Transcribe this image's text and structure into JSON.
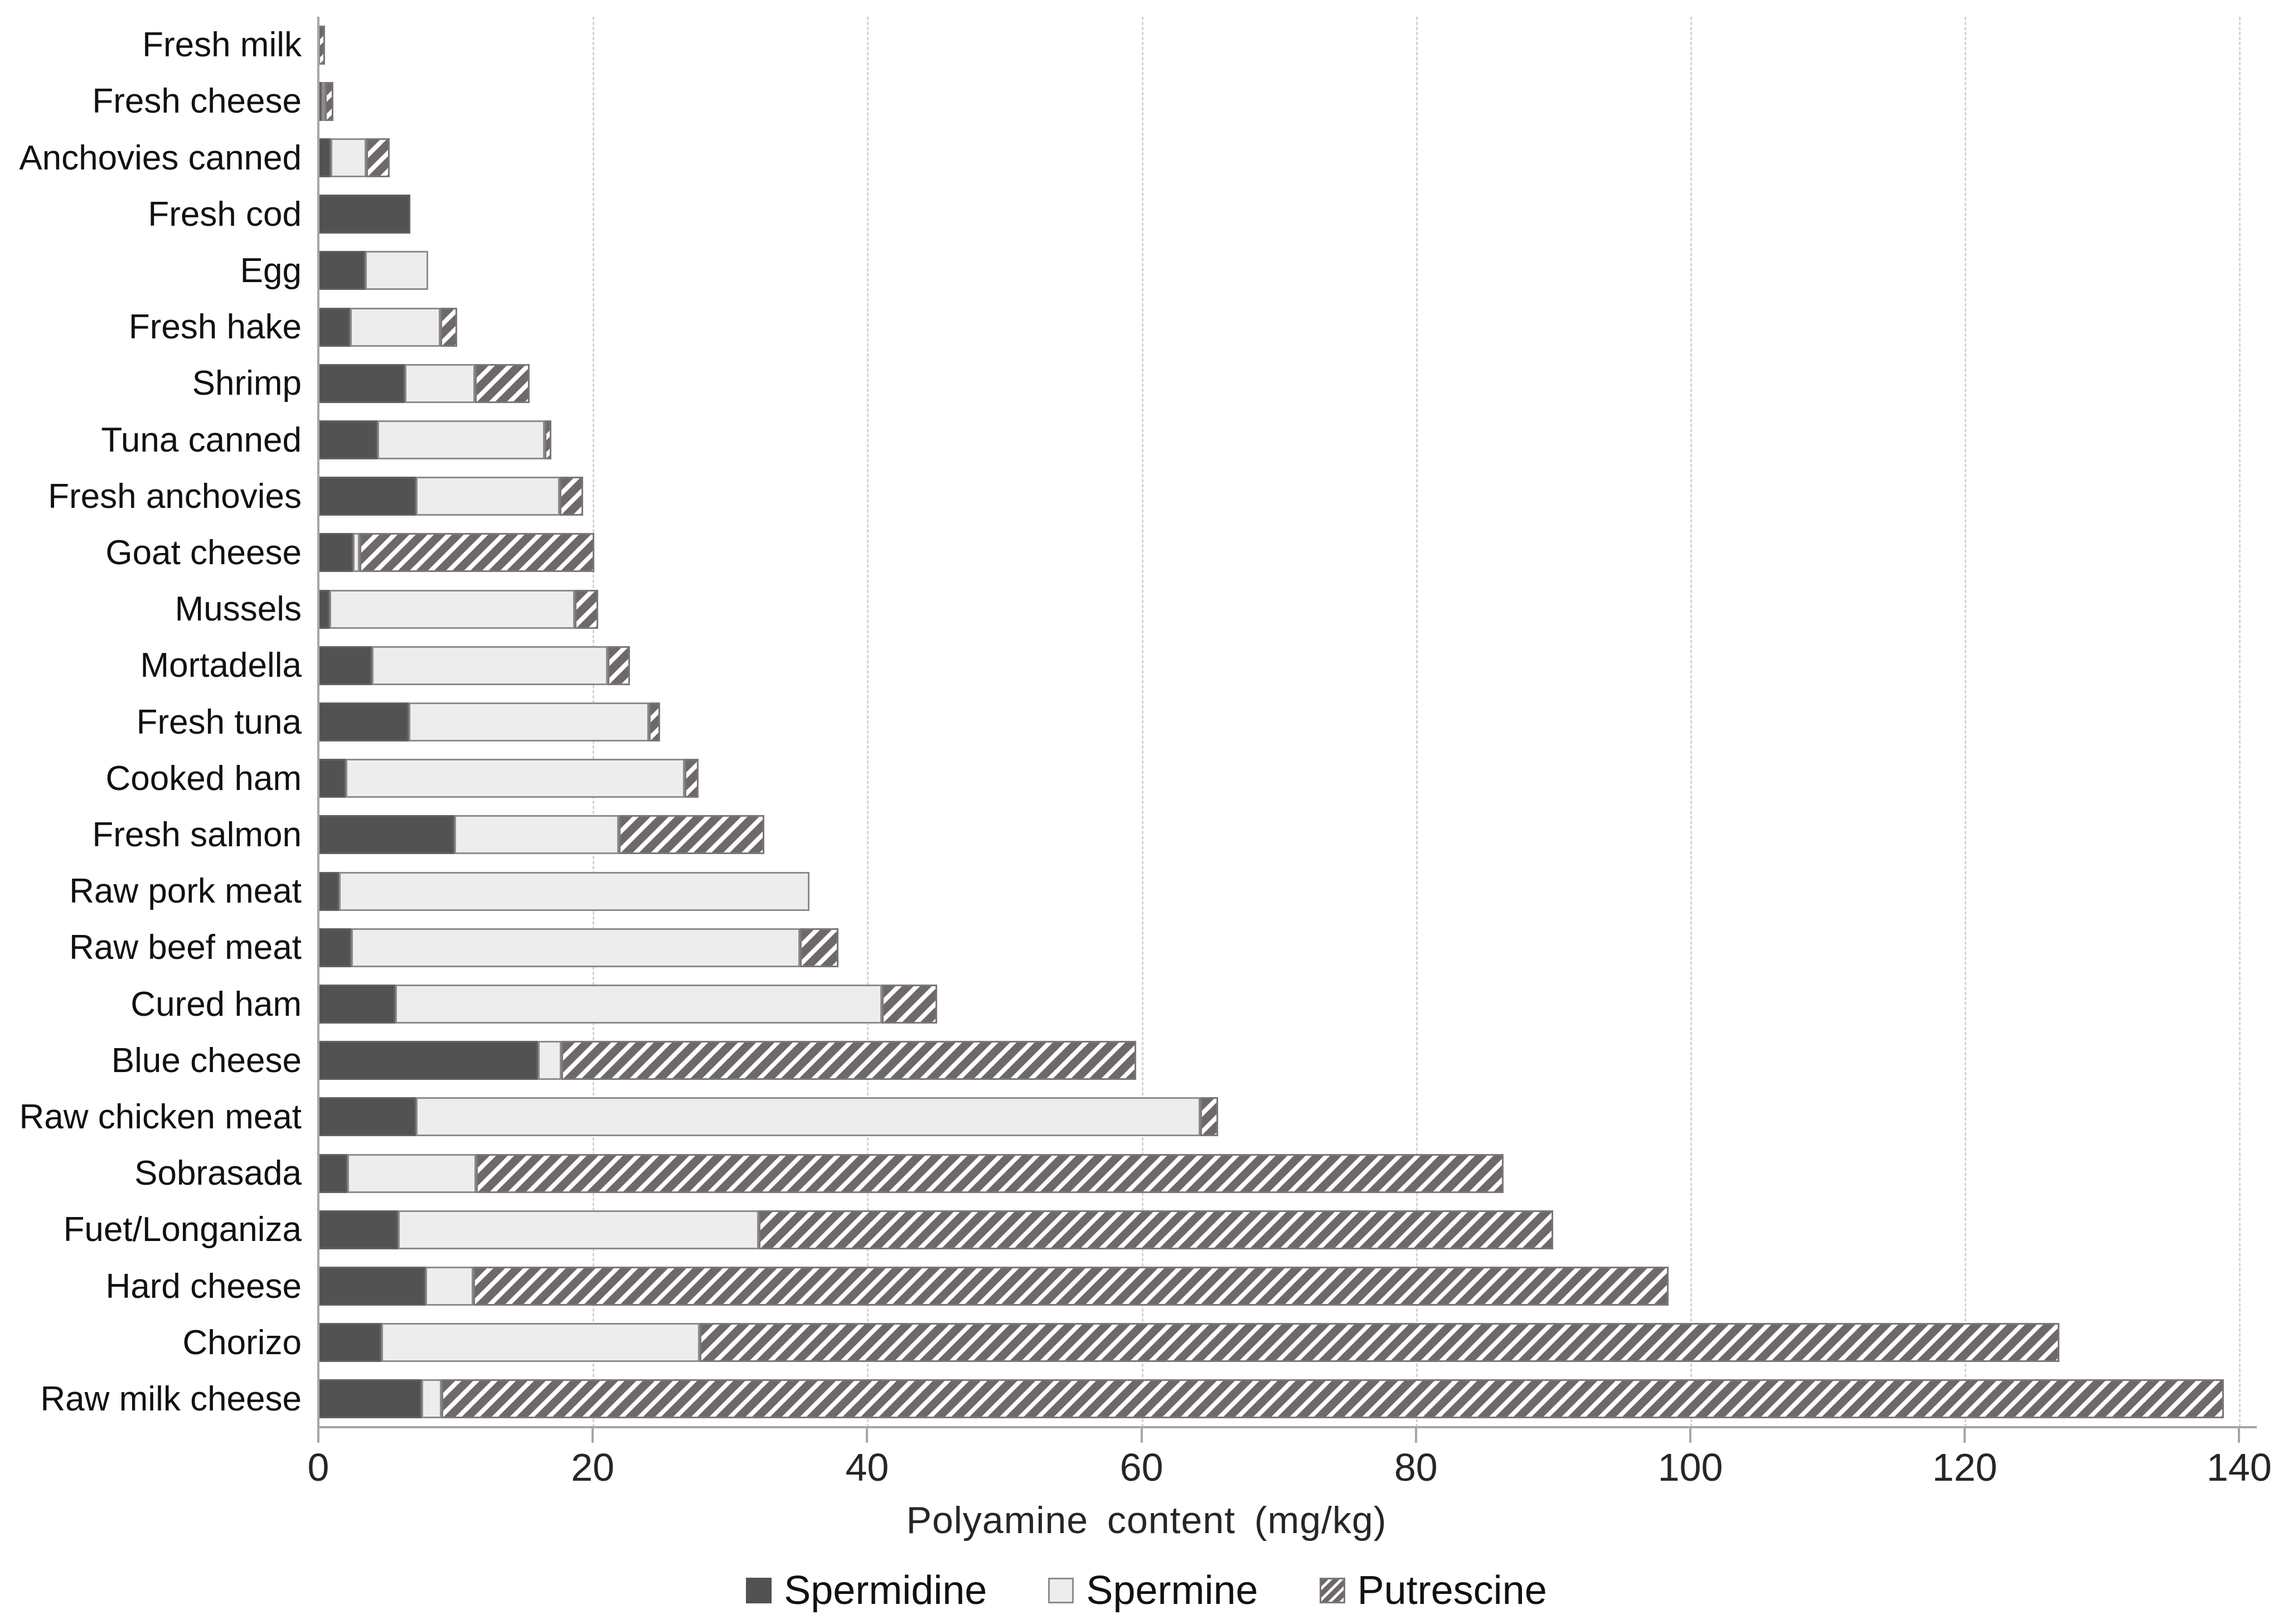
{
  "chart_data": {
    "type": "bar",
    "orientation": "horizontal",
    "stacked": true,
    "title": "",
    "xlabel": "Polyamine content (mg/kg)",
    "ylabel": "",
    "xlim": [
      0,
      140
    ],
    "xticks": [
      0,
      20,
      40,
      60,
      80,
      100,
      120,
      140
    ],
    "grid": "vertical-dashed",
    "legend_position": "bottom",
    "categories": [
      "Fresh milk",
      "Fresh cheese",
      "Anchovies canned",
      "Fresh cod",
      "Egg",
      "Fresh hake",
      "Shrimp",
      "Tuna canned",
      "Fresh anchovies",
      "Goat cheese",
      "Mussels",
      "Mortadella",
      "Fresh tuna",
      "Cooked ham",
      "Fresh salmon",
      "Raw pork meat",
      "Raw beef meat",
      "Cured ham",
      "Blue cheese",
      "Raw chicken meat",
      "Sobrasada",
      "Fuet/Longaniza",
      "Hard cheese",
      "Chorizo",
      "Raw milk cheese"
    ],
    "series": [
      {
        "name": "Spermidine",
        "pattern": "solid",
        "color": "#525252",
        "values": [
          0,
          0.1,
          0.9,
          6.7,
          3.4,
          2.3,
          6.3,
          4.3,
          7.1,
          2.5,
          0.8,
          3.9,
          6.6,
          2.0,
          9.9,
          1.5,
          2.4,
          5.6,
          16.0,
          7.1,
          2.1,
          5.8,
          7.8,
          4.6,
          7.5
        ]
      },
      {
        "name": "Spermine",
        "pattern": "solid",
        "color": "#ededed",
        "values": [
          0,
          0.2,
          2.6,
          0,
          4.6,
          6.6,
          5.1,
          12.2,
          10.5,
          0.5,
          17.9,
          17.2,
          17.5,
          24.7,
          12.0,
          34.3,
          32.7,
          35.5,
          1.7,
          57.2,
          9.4,
          26.3,
          3.5,
          23.2,
          1.5
        ]
      },
      {
        "name": "Putrescine",
        "pattern": "diagonal-hatch",
        "color": "#6e6868",
        "values": [
          0.5,
          0.6,
          1.7,
          0,
          0,
          1.2,
          4.0,
          0.5,
          1.7,
          17.1,
          1.7,
          1.6,
          0.8,
          1.0,
          10.6,
          0,
          2.8,
          4.0,
          41.9,
          1.3,
          74.9,
          57.9,
          87.1,
          99.1,
          129.9
        ]
      }
    ]
  },
  "colors": {
    "spermidine_fill": "#525252",
    "spermine_fill": "#ededed",
    "spermine_border": "#8c8c8c",
    "putrescine_hatch_fg": "#6e6868",
    "putrescine_hatch_bg": "#ffffff",
    "axis": "#a6a6a6",
    "gridline": "#d5d3d3",
    "text": "#111111"
  }
}
